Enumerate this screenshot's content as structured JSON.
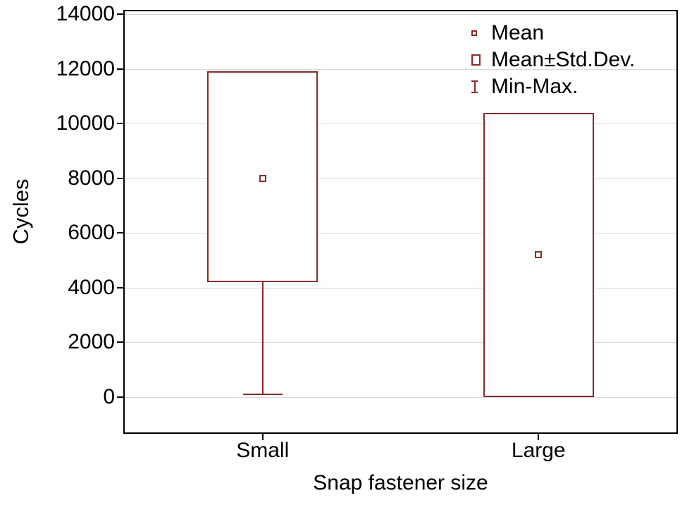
{
  "chart_data": {
    "type": "box",
    "title": "",
    "xlabel": "Snap fastener size",
    "ylabel": "Cycles",
    "ylim": [
      0,
      14000
    ],
    "y_ticks": [
      0,
      2000,
      4000,
      6000,
      8000,
      10000,
      12000,
      14000
    ],
    "grid": "horizontal",
    "legend_position": "top-right-inside",
    "categories": [
      "Small",
      "Large"
    ],
    "series": [
      {
        "category": "Small",
        "mean": 8000,
        "std_low": 4200,
        "std_high": 11900,
        "min": 100,
        "max": 11900
      },
      {
        "category": "Large",
        "mean": 5200,
        "std_low": 0,
        "std_high": 10400,
        "min": 0,
        "max": 10400
      }
    ],
    "legend": [
      {
        "label": "Mean",
        "marker": "mean-point"
      },
      {
        "label": "Mean±Std.Dev.",
        "marker": "box"
      },
      {
        "label": "Min-Max.",
        "marker": "whisker"
      }
    ],
    "colors": {
      "box": "#8b2a2a",
      "grid": "#d9d9d9",
      "axis": "#000000",
      "background": "#ffffff"
    }
  }
}
